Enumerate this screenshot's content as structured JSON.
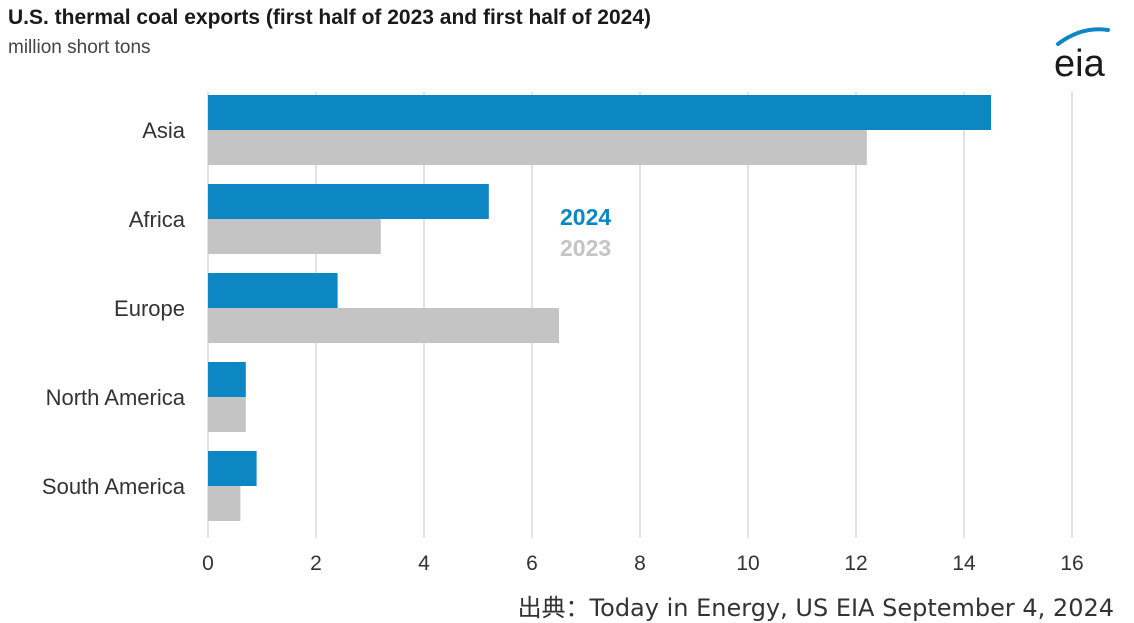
{
  "title": "U.S. thermal coal exports (first half of 2023 and first half of 2024)",
  "subtitle": "million short tons",
  "logo_text": "eia",
  "source_note": "出典：Today in Energy, US EIA September 4, 2024",
  "colors": {
    "series_2024": "#0c87c4",
    "series_2023": "#c4c4c4",
    "grid": "#d9d9d9",
    "logo_arc": "#0c87c4"
  },
  "chart_data": {
    "type": "bar",
    "orientation": "horizontal",
    "categories": [
      "Asia",
      "Africa",
      "Europe",
      "North America",
      "South America"
    ],
    "series": [
      {
        "name": "2024",
        "values": [
          14.5,
          5.2,
          2.4,
          0.7,
          0.9
        ]
      },
      {
        "name": "2023",
        "values": [
          12.2,
          3.2,
          6.5,
          0.7,
          0.6
        ]
      }
    ],
    "xlim": [
      0,
      16
    ],
    "xticks": [
      0,
      2,
      4,
      6,
      8,
      10,
      12,
      14,
      16
    ],
    "grid": true,
    "legend_position": "inside-center"
  }
}
